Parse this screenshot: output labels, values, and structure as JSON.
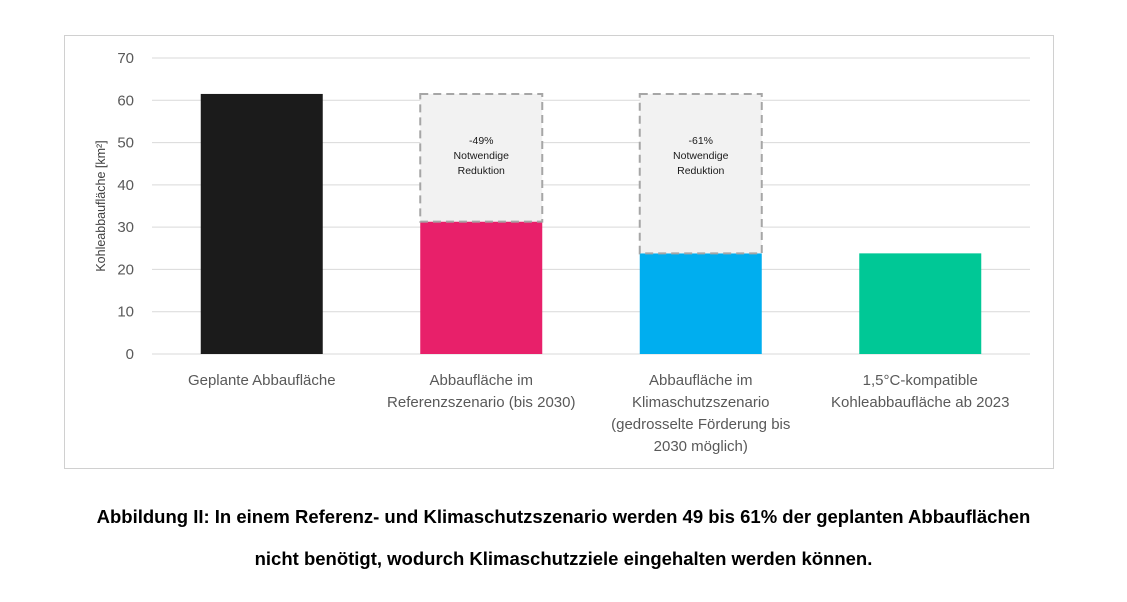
{
  "chart_data": {
    "type": "bar",
    "ylabel": "Kohleabbaufläche [km²]",
    "ylim": [
      0,
      70
    ],
    "yticks": [
      0,
      10,
      20,
      30,
      40,
      50,
      60,
      70
    ],
    "grid": true,
    "categories": [
      [
        "Geplante Abbaufläche"
      ],
      [
        "Abbaufläche im",
        "Referenzszenario (bis 2030)"
      ],
      [
        "Abbaufläche im",
        "Klimaschutzszenario",
        "(gedrosselte Förderung bis",
        "2030 möglich)"
      ],
      [
        "1,5°C-kompatible",
        "Kohleabbaufläche ab 2023"
      ]
    ],
    "values": [
      61.5,
      31.3,
      23.8,
      23.8
    ],
    "colors": [
      "#1b1b1b",
      "#e8206a",
      "#00aeef",
      "#00c896"
    ],
    "reduction": [
      {
        "category_index": 1,
        "from": 31.3,
        "to": 61.5,
        "lines": [
          "-49%",
          "Notwendige",
          "Reduktion"
        ]
      },
      {
        "category_index": 2,
        "from": 23.8,
        "to": 61.5,
        "lines": [
          "-61%",
          "Notwendige",
          "Reduktion"
        ]
      }
    ]
  },
  "caption": {
    "line1": "Abbildung II: In einem Referenz- und Klimaschutzszenario werden 49 bis 61% der geplanten Abbauflächen",
    "line2": "nicht benötigt, wodurch Klimaschutzziele eingehalten werden können."
  }
}
